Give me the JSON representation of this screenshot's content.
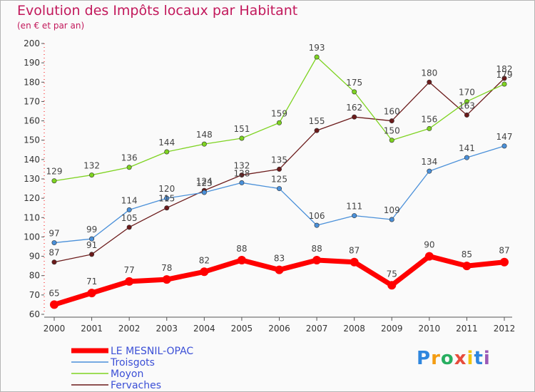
{
  "chart_data": {
    "type": "line",
    "title": "Evolution des Impôts locaux par Habitant",
    "subtitle": "(en € et par an)",
    "xlabel": "",
    "ylabel": "",
    "x": [
      "2000",
      "2001",
      "2002",
      "2003",
      "2004",
      "2005",
      "2006",
      "2007",
      "2008",
      "2009",
      "2010",
      "2011",
      "2012"
    ],
    "ylim": [
      60,
      200
    ],
    "yticks": [
      "60",
      "70",
      "80",
      "90",
      "100",
      "110",
      "120",
      "130",
      "140",
      "150",
      "160",
      "170",
      "180",
      "190",
      "200"
    ],
    "grid": false,
    "legend_position": "bottom-left",
    "series": [
      {
        "name": "LE MESNIL-OPAC",
        "color": "#ff0000",
        "values": [
          65,
          71,
          77,
          78,
          82,
          88,
          83,
          88,
          87,
          75,
          90,
          85,
          87
        ]
      },
      {
        "name": "Troisgots",
        "color": "#4a90d9",
        "values": [
          97,
          99,
          114,
          120,
          123,
          128,
          125,
          106,
          111,
          109,
          134,
          141,
          147
        ]
      },
      {
        "name": "Moyon",
        "color": "#7ed321",
        "values": [
          129,
          132,
          136,
          144,
          148,
          151,
          159,
          193,
          175,
          150,
          156,
          170,
          179
        ]
      },
      {
        "name": "Fervaches",
        "color": "#6b1a1a",
        "values": [
          87,
          91,
          105,
          115,
          124,
          132,
          135,
          155,
          162,
          160,
          180,
          163,
          182
        ]
      }
    ]
  },
  "logo": {
    "letters": [
      "P",
      "r",
      "o",
      "x",
      "i",
      "t",
      "i"
    ],
    "colors": [
      "#2e86de",
      "#f39c12",
      "#27ae60",
      "#e74c3c",
      "#f1c40f",
      "#2e86de",
      "#9b59b6"
    ]
  }
}
